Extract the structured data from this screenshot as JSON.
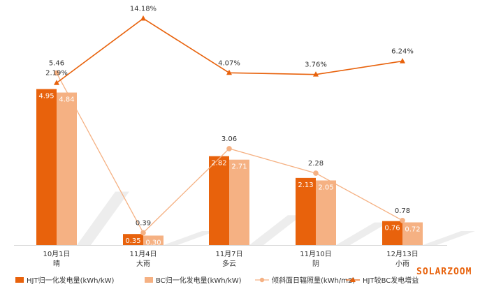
{
  "watermark": "SOLARZOOM",
  "chart_data": {
    "type": "bar",
    "categories": [
      {
        "date": "10月1日",
        "weather": "晴"
      },
      {
        "date": "11月4日",
        "weather": "大雨"
      },
      {
        "date": "11月7日",
        "weather": "多云"
      },
      {
        "date": "11月10日",
        "weather": "阴"
      },
      {
        "date": "12月13日",
        "weather": "小雨"
      }
    ],
    "series": [
      {
        "name": "HJT归一化发电量(kWh/kW)",
        "kind": "bar",
        "color": "#e8620c",
        "values": [
          4.95,
          0.35,
          2.82,
          2.13,
          0.76
        ],
        "labels": [
          "4.95",
          "0.35",
          "2.82",
          "2.13",
          "0.76"
        ]
      },
      {
        "name": "BC归一化发电量(kWh/kW)",
        "kind": "bar",
        "color": "#f5b183",
        "values": [
          4.84,
          0.3,
          2.71,
          2.05,
          0.72
        ],
        "labels": [
          "4.84",
          "0.30",
          "2.71",
          "2.05",
          "0.72"
        ]
      },
      {
        "name": "倾斜面日辐照量(kWh/m2)",
        "kind": "line",
        "marker": "circle",
        "color": "#f5b183",
        "values": [
          5.46,
          0.39,
          3.06,
          2.28,
          0.78
        ],
        "labels": [
          "5.46",
          "0.39",
          "3.06",
          "2.28",
          "0.78"
        ]
      },
      {
        "name": "HJT较BC发电增益",
        "kind": "line",
        "marker": "triangle",
        "color": "#e8620c",
        "axis": "secondary",
        "values": [
          2.19,
          14.18,
          4.07,
          3.76,
          6.24
        ],
        "labels": [
          "2.19%",
          "14.18%",
          "4.07%",
          "3.76%",
          "6.24%"
        ]
      }
    ],
    "ylim": [
      0,
      7.5
    ],
    "y2lim": [
      -28,
      16
    ],
    "grid": false,
    "legend": "bottom"
  }
}
